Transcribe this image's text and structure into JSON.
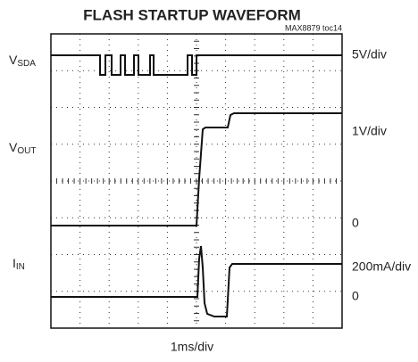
{
  "title": "FLASH STARTUP WAVEFORM",
  "note": "MAX8879 toc14",
  "left_labels": [
    {
      "main": "V",
      "sub": "SDA"
    },
    {
      "main": "V",
      "sub": "OUT"
    },
    {
      "main": "I",
      "sub": "IN"
    }
  ],
  "right_labels": [
    "5V/div",
    "1V/div",
    "0",
    "200mA/div",
    "0"
  ],
  "time_scale": "1ms/div"
}
